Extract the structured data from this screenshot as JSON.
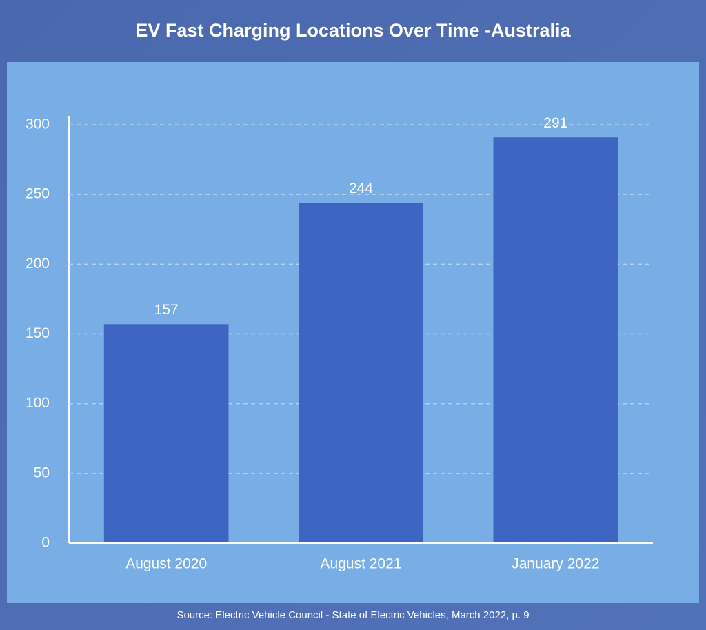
{
  "chart_data": {
    "type": "bar",
    "title": "EV Fast Charging Locations Over Time -Australia",
    "categories": [
      "August 2020",
      "August 2021",
      "January 2022"
    ],
    "values": [
      157,
      244,
      291
    ],
    "color": "#3e65c2",
    "ylim": [
      0,
      300
    ],
    "yticks": [
      0,
      50,
      100,
      150,
      200,
      250,
      300
    ],
    "grid": true,
    "source": "Source: Electric Vehicle Council - State of Electric Vehicles, March 2022, p. 9"
  }
}
